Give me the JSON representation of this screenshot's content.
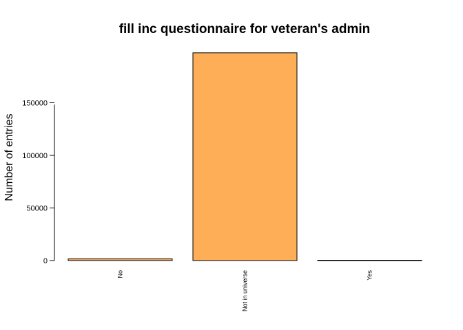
{
  "chart_data": {
    "type": "bar",
    "title": "fill inc questionnaire for veteran's admin",
    "xlabel": "",
    "ylabel": "Number of entries",
    "categories": [
      "No",
      "Not in universe",
      "Yes"
    ],
    "values": [
      1600,
      197500,
      300
    ],
    "yticks": [
      0,
      50000,
      100000,
      150000
    ],
    "ytick_labels": [
      "0",
      "50000",
      "100000",
      "150000"
    ],
    "ylim": [
      0,
      200000
    ],
    "bar_color": "#FDAE56",
    "bar_edge_color": "#000000",
    "category_label_rotation": "vertical",
    "grid": false,
    "legend": "none"
  }
}
